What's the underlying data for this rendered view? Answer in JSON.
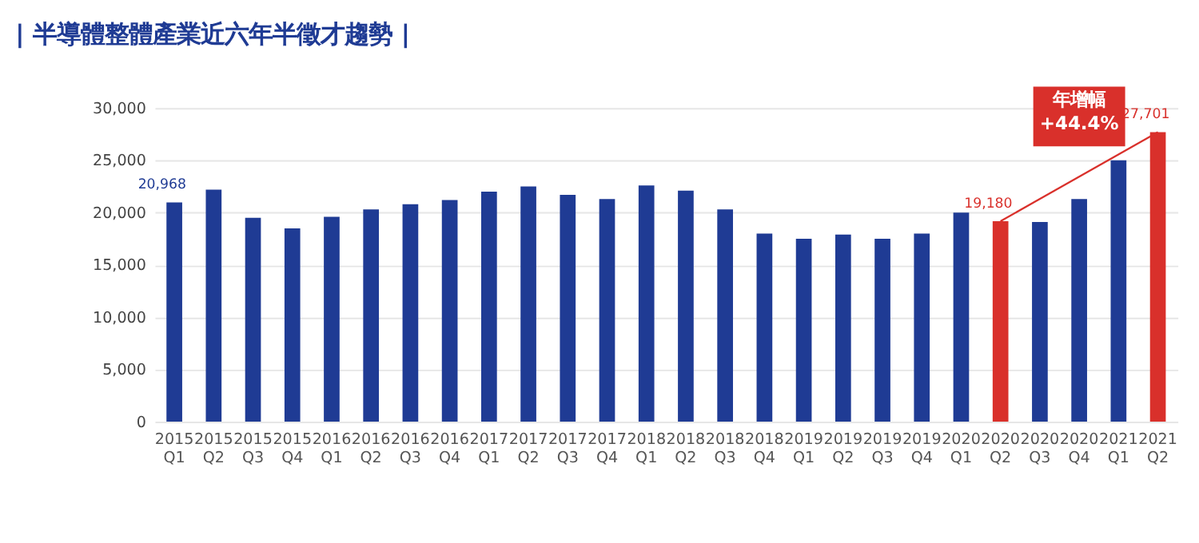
{
  "chart_data": {
    "type": "bar",
    "title": "| 半導體整體產業近六年半徵才趨勢 |",
    "categories": [
      "2015\nQ1",
      "2015\nQ2",
      "2015\nQ3",
      "2015\nQ4",
      "2016\nQ1",
      "2016\nQ2",
      "2016\nQ3",
      "2016\nQ4",
      "2017\nQ1",
      "2017\nQ2",
      "2017\nQ3",
      "2017\nQ4",
      "2018\nQ1",
      "2018\nQ2",
      "2018\nQ3",
      "2018\nQ4",
      "2019\nQ1",
      "2019\nQ2",
      "2019\nQ3",
      "2019\nQ4",
      "2020\nQ1",
      "2020\nQ2",
      "2020\nQ3",
      "2020\nQ4",
      "2021\nQ1",
      "2021\nQ2"
    ],
    "values": [
      20968,
      22200,
      19500,
      18500,
      19600,
      20300,
      20800,
      21200,
      22000,
      22500,
      21700,
      21300,
      22600,
      22100,
      20300,
      18000,
      17500,
      17900,
      17500,
      18000,
      20000,
      19180,
      19100,
      21300,
      25000,
      27701
    ],
    "colors": [
      "#1f3b94",
      "#1f3b94",
      "#1f3b94",
      "#1f3b94",
      "#1f3b94",
      "#1f3b94",
      "#1f3b94",
      "#1f3b94",
      "#1f3b94",
      "#1f3b94",
      "#1f3b94",
      "#1f3b94",
      "#1f3b94",
      "#1f3b94",
      "#1f3b94",
      "#1f3b94",
      "#1f3b94",
      "#1f3b94",
      "#1f3b94",
      "#1f3b94",
      "#1f3b94",
      "#d9302b",
      "#1f3b94",
      "#1f3b94",
      "#1f3b94",
      "#d9302b"
    ],
    "value_labels": [
      "20,968",
      null,
      null,
      null,
      null,
      null,
      null,
      null,
      null,
      null,
      null,
      null,
      null,
      null,
      null,
      null,
      null,
      null,
      null,
      null,
      null,
      "19,180",
      null,
      null,
      null,
      "27,701"
    ],
    "ylim": [
      0,
      30000
    ],
    "yticks": [
      0,
      {
        "value": 5000,
        "label": "5,000"
      },
      {
        "value": 10000,
        "label": "10,000"
      },
      {
        "value": 15000,
        "label": "15,000"
      },
      {
        "value": 20000,
        "label": "20,000"
      },
      {
        "value": 25000,
        "label": "25,000"
      },
      {
        "value": 30000,
        "label": "30,000"
      }
    ],
    "grid": "y",
    "annotations": [
      "年增幅\n+44.4%"
    ]
  }
}
